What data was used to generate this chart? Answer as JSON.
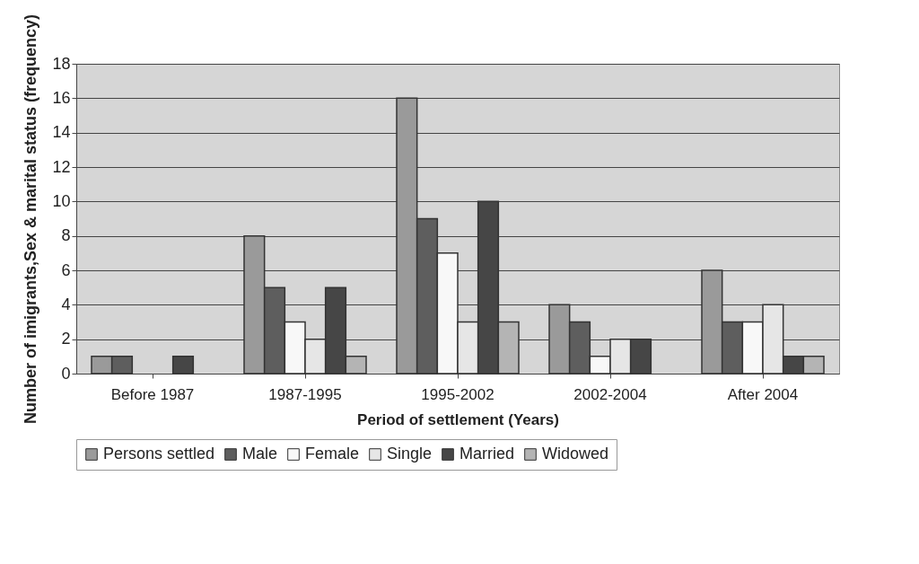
{
  "chart_data": {
    "type": "bar",
    "xlabel": "Period of settlement (Years)",
    "ylabel": "Number of imigrants,Sex & marital status (frequency)",
    "categories": [
      "Before 1987",
      "1987-1995",
      "1995-2002",
      "2002-2004",
      "After 2004"
    ],
    "series": [
      {
        "name": "Persons settled",
        "color": "#9a9a9a",
        "values": [
          1,
          8,
          16,
          4,
          6
        ]
      },
      {
        "name": "Male",
        "color": "#5e5e5e",
        "values": [
          1,
          5,
          9,
          3,
          3
        ]
      },
      {
        "name": "Female",
        "color": "#f8f8f8",
        "values": [
          0,
          3,
          7,
          1,
          3
        ]
      },
      {
        "name": "Single",
        "color": "#e6e6e6",
        "values": [
          0,
          2,
          3,
          2,
          4
        ]
      },
      {
        "name": "Married",
        "color": "#464646",
        "values": [
          1,
          5,
          10,
          2,
          1
        ]
      },
      {
        "name": "Widowed",
        "color": "#b4b4b4",
        "values": [
          0,
          1,
          3,
          0,
          1
        ]
      }
    ],
    "ylim": [
      0,
      18
    ],
    "yticks": [
      0,
      2,
      4,
      6,
      8,
      10,
      12,
      14,
      16,
      18
    ],
    "grid": "y",
    "legend": "bottom"
  }
}
